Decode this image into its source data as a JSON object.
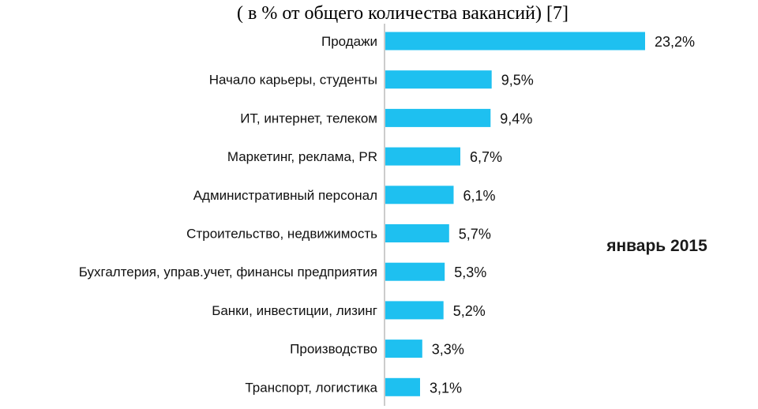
{
  "chart_data": {
    "type": "bar",
    "orientation": "horizontal",
    "subtitle": "( в % от общего количества вакансий) [7]",
    "period_label": "январь 2015",
    "categories": [
      "Продажи",
      "Начало карьеры, студенты",
      "ИТ,  интернет, телеком",
      "Маркетинг, реклама, PR",
      "Административный персонал",
      "Строительство, недвижимость",
      "Бухгалтерия,  управ.учет,  финансы предприятия",
      "Банки, инвестиции, лизинг",
      "Производство",
      "Транспорт, логистика"
    ],
    "values": [
      23.2,
      9.5,
      9.4,
      6.7,
      6.1,
      5.7,
      5.3,
      5.2,
      3.3,
      3.1
    ],
    "value_labels": [
      "23,2%",
      "9,5%",
      "9,4%",
      "6,7%",
      "6,1%",
      "5,7%",
      "5,3%",
      "5,2%",
      "3,3%",
      "3,1%"
    ],
    "xlim": [
      0,
      24
    ],
    "bar_color": "#1ec0f0",
    "grid": false,
    "legend": "none"
  }
}
